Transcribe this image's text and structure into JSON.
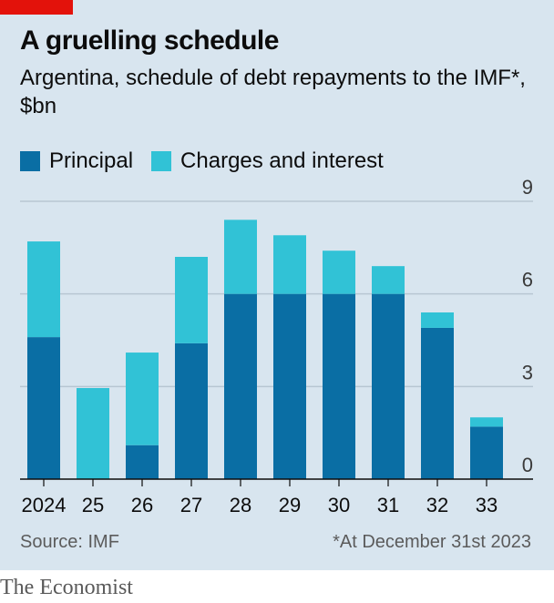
{
  "header": {
    "title": "A gruelling schedule",
    "subtitle": "Argentina, schedule of debt repayments to the IMF*, $bn"
  },
  "legend": {
    "items": [
      {
        "label": "Principal",
        "color": "#0a6ea4"
      },
      {
        "label": "Charges and interest",
        "color": "#31c2d6"
      }
    ]
  },
  "footer": {
    "source": "Source: IMF",
    "footnote": "*At December 31st 2023",
    "brand": "The Economist"
  },
  "colors": {
    "accent_red": "#e3120b",
    "principal": "#0a6ea4",
    "charges": "#31c2d6",
    "background": "#d8e5ef",
    "gridline": "#b7c6d2",
    "axis": "#0c0c0c"
  },
  "chart_data": {
    "type": "bar",
    "stacked": true,
    "categories": [
      "2024",
      "25",
      "26",
      "27",
      "28",
      "29",
      "30",
      "31",
      "32",
      "33"
    ],
    "series": [
      {
        "name": "Principal",
        "color": "#0a6ea4",
        "values": [
          4.6,
          0,
          1.1,
          4.4,
          6.0,
          6.0,
          6.0,
          6.0,
          4.9,
          1.7
        ]
      },
      {
        "name": "Charges and interest",
        "color": "#31c2d6",
        "values": [
          3.1,
          2.95,
          3.0,
          2.8,
          2.4,
          1.9,
          1.4,
          0.9,
          0.5,
          0.3
        ]
      }
    ],
    "y_ticks": [
      0,
      3,
      6,
      9
    ],
    "ylim": [
      0,
      9
    ],
    "y_axis_side": "right",
    "grid": true
  }
}
